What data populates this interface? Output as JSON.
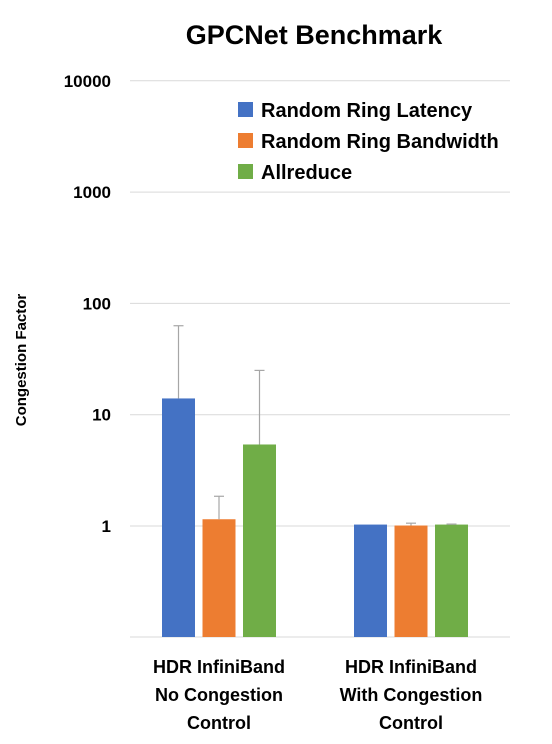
{
  "chart_data": {
    "type": "bar",
    "title": "GPCNet Benchmark",
    "ylabel": "Congestion Factor",
    "xlabel": "",
    "yscale": "log",
    "ylim": [
      0.1,
      10000
    ],
    "yticks": [
      {
        "value": 1,
        "label": "1"
      },
      {
        "value": 10,
        "label": "10"
      },
      {
        "value": 100,
        "label": "100"
      },
      {
        "value": 1000,
        "label": "1000"
      },
      {
        "value": 10000,
        "label": "10000"
      }
    ],
    "grid": true,
    "legend_position": "top-right",
    "categories": [
      [
        "HDR InfiniBand",
        "No Congestion",
        "Control"
      ],
      [
        "HDR InfiniBand",
        "With Congestion",
        "Control"
      ]
    ],
    "series": [
      {
        "name": "Random Ring Latency",
        "color": "#4472c4",
        "values": [
          14,
          1.03
        ],
        "error_upper": [
          63,
          1.03
        ]
      },
      {
        "name": "Random Ring Bandwidth",
        "color": "#ed7d31",
        "values": [
          1.15,
          1.01
        ],
        "error_upper": [
          1.85,
          1.06
        ]
      },
      {
        "name": "Allreduce",
        "color": "#70ad47",
        "values": [
          5.4,
          1.03
        ],
        "error_upper": [
          25,
          1.04
        ]
      }
    ]
  }
}
